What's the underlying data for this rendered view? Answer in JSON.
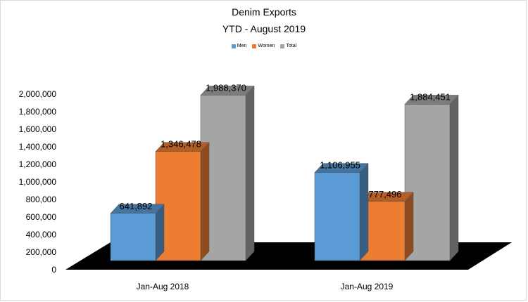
{
  "chart_data": {
    "type": "bar",
    "title": "Denim Exports",
    "subtitle": "YTD - August 2019",
    "categories": [
      "Jan-Aug 2018",
      "Jan-Aug 2019"
    ],
    "series": [
      {
        "name": "Men",
        "values": [
          641892,
          1106955
        ],
        "labels": [
          "641,892",
          "1,106,955"
        ],
        "color": "#5b9bd5"
      },
      {
        "name": "Women",
        "values": [
          1346478,
          777496
        ],
        "labels": [
          "1,346,478",
          "777,496"
        ],
        "color": "#ed7d31"
      },
      {
        "name": "Total",
        "values": [
          1988370,
          1884451
        ],
        "labels": [
          "1,988,370",
          "1,884,451"
        ],
        "color": "#a5a5a5"
      }
    ],
    "y_ticks": [
      "0",
      "200,000",
      "400,000",
      "600,000",
      "800,000",
      "1,000,000",
      "1,200,000",
      "1,400,000",
      "1,600,000",
      "1,800,000",
      "2,000,000"
    ],
    "ylim": [
      0,
      2000000
    ],
    "legend_position": "top-center",
    "style": "3d-column",
    "floor_color": "#000000",
    "grid": false
  }
}
